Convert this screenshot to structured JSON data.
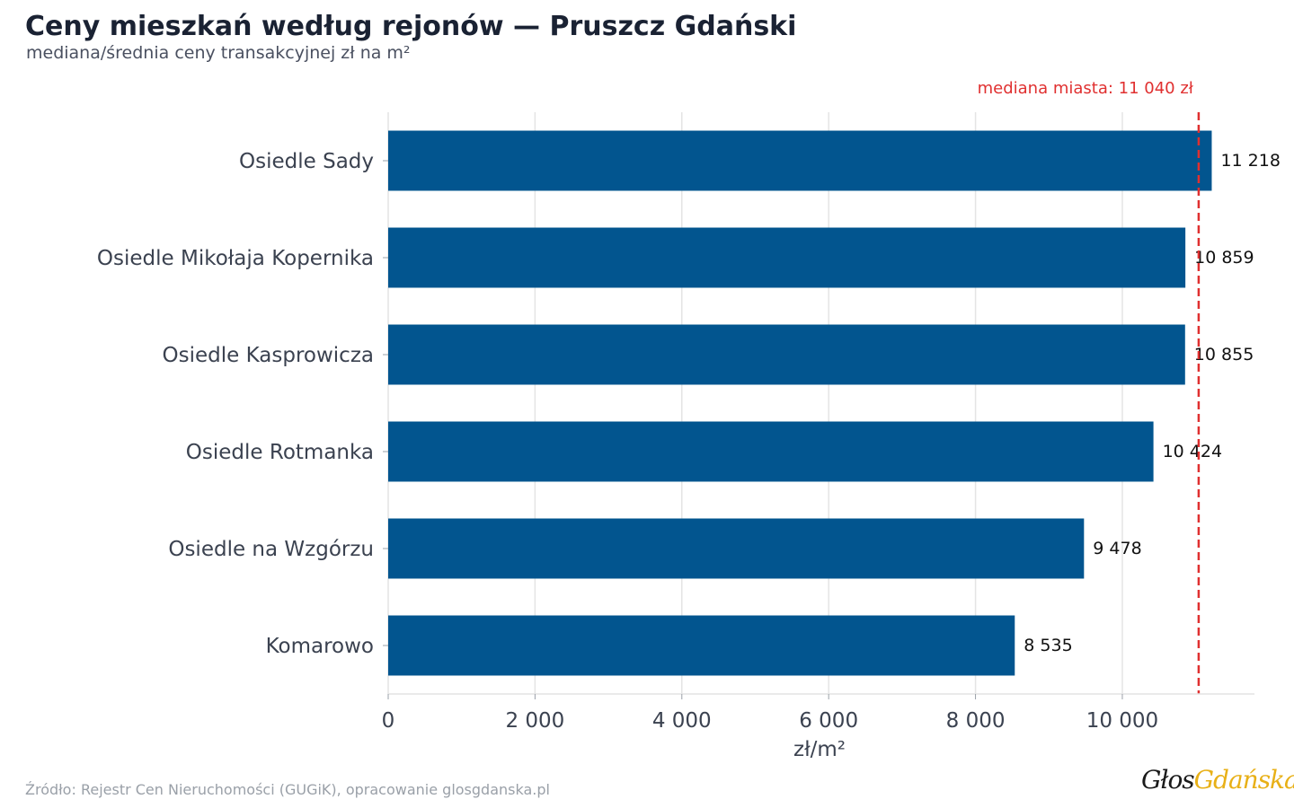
{
  "header": {
    "title": "Ceny mieszkań według rejonów — Pruszcz Gdański",
    "subtitle": "mediana/średnia ceny transakcyjnej zł na m²"
  },
  "footer": {
    "source": "Źródło: Rejestr Cen Nieruchomości (GUGiK), opracowanie glosgdanska.pl"
  },
  "logo": {
    "part1": "Głos",
    "part2": "Gdańska"
  },
  "colors": {
    "bar": "#02558f",
    "reference": "#e03030",
    "grid": "#e4e4e4",
    "axis_text": "#3b4250"
  },
  "chart_data": {
    "type": "bar",
    "orientation": "horizontal",
    "categories": [
      "Osiedle Sady",
      "Osiedle Mikołaja Kopernika",
      "Osiedle Kasprowicza",
      "Osiedle Rotmanka",
      "Osiedle na Wzgórzu",
      "Komarowo"
    ],
    "values": [
      11218,
      10859,
      10855,
      10424,
      9478,
      8535
    ],
    "value_labels": [
      "11 218",
      "10 859",
      "10 855",
      "10 424",
      "9 478",
      "8 535"
    ],
    "xlabel": "zł/m²",
    "ylabel": "",
    "xlim": [
      0,
      11800
    ],
    "xticks": [
      0,
      2000,
      4000,
      6000,
      8000,
      10000
    ],
    "xtick_labels": [
      "0",
      "2 000",
      "4 000",
      "6 000",
      "8 000",
      "10 000"
    ],
    "grid": "vertical",
    "reference_line": {
      "value": 11040,
      "label": "mediana miasta: 11 040 zł"
    }
  }
}
